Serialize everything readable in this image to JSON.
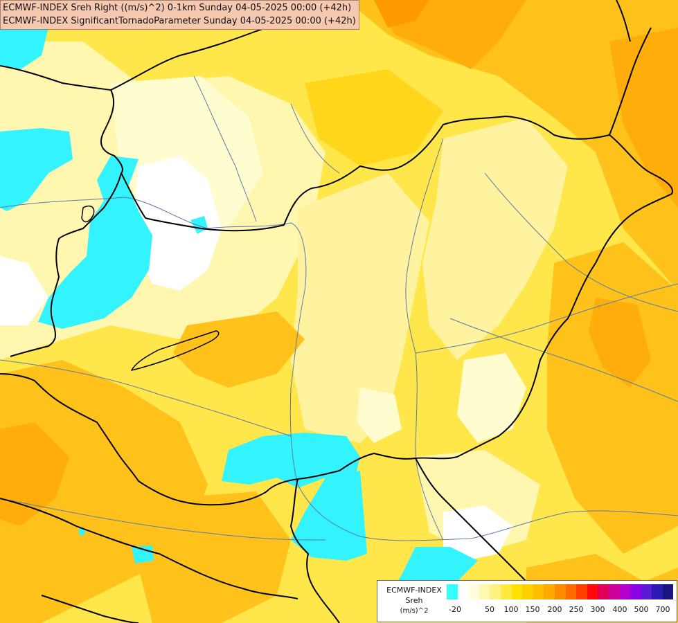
{
  "header": {
    "line1": "ECMWF-INDEX Sreh Right ((m/s)^2) 0-1km Sunday 04-05-2025 00:00 (+42h)",
    "line2": "ECMWF-INDEX SignificantTornadoParameter Sunday 04-05-2025 00:00 (+42h)"
  },
  "legend": {
    "model": "ECMWF-INDEX",
    "param": "Sreh",
    "unit": "(m/s)^2",
    "tick_labels": [
      "-20",
      "50",
      "100",
      "150",
      "200",
      "250",
      "300",
      "400",
      "500",
      "700"
    ],
    "colors": [
      "#33ffff",
      "#ffffff",
      "#fffde0",
      "#fff8b0",
      "#fff280",
      "#ffeb40",
      "#ffe000",
      "#ffd000",
      "#ffbf00",
      "#ffaa00",
      "#ff8c00",
      "#ff6a00",
      "#ff4000",
      "#ff0a0a",
      "#e0005a",
      "#cc0099",
      "#b300cc",
      "#8c00e6",
      "#5a1ad6",
      "#2d1ab3",
      "#1a1480"
    ]
  },
  "map_colors": {
    "base": "#ffe680",
    "low_white": "#ffffff",
    "pale": "#fffcd0",
    "light_yellow": "#fff3a0",
    "yellow": "#ffe64a",
    "yellow_deep": "#ffd61a",
    "orange_light": "#ffc21a",
    "orange": "#ffad0a",
    "orange_deep": "#ff9a00",
    "cyan": "#33f3ff",
    "border": "#000000",
    "river": "#5a7aa8"
  }
}
